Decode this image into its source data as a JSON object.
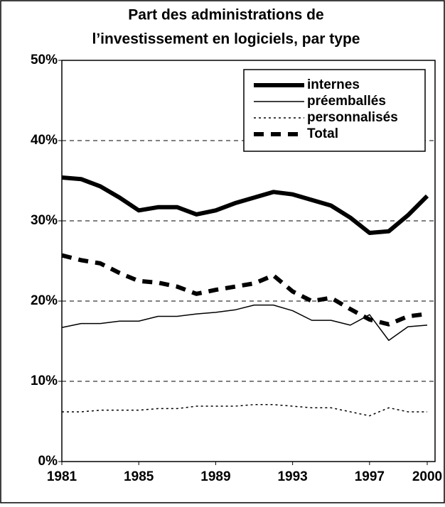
{
  "chart_data": {
    "type": "line",
    "title": [
      "Part des administrations de",
      "l’investissement en logiciels, par type"
    ],
    "x": [
      1981,
      1982,
      1983,
      1984,
      1985,
      1986,
      1987,
      1988,
      1989,
      1990,
      1991,
      1992,
      1993,
      1994,
      1995,
      1996,
      1997,
      1998,
      1999,
      2000
    ],
    "xlim": [
      1981,
      2000
    ],
    "xticks": [
      1981,
      1985,
      1989,
      1993,
      1997,
      2000
    ],
    "ylim": [
      0,
      50
    ],
    "yticks": [
      {
        "value": 0,
        "label": "0%"
      },
      {
        "value": 10,
        "label": "10%"
      },
      {
        "value": 20,
        "label": "20%"
      },
      {
        "value": 30,
        "label": "30%"
      },
      {
        "value": 40,
        "label": "40%"
      },
      {
        "value": 50,
        "label": "50%"
      }
    ],
    "grid": true,
    "legend": "top-right",
    "series": [
      {
        "name": "internes",
        "color": "#000000",
        "width": 6,
        "dash": "none",
        "values": [
          35.4,
          35.2,
          34.3,
          32.9,
          31.3,
          31.7,
          31.7,
          30.8,
          31.3,
          32.2,
          32.9,
          33.6,
          33.3,
          32.6,
          31.9,
          30.4,
          28.5,
          28.7,
          30.7,
          33.1
        ]
      },
      {
        "name": "préemballés",
        "color": "#000000",
        "width": 1.5,
        "dash": "none",
        "values": [
          16.7,
          17.2,
          17.2,
          17.5,
          17.5,
          18.1,
          18.1,
          18.4,
          18.6,
          18.9,
          19.5,
          19.5,
          18.8,
          17.6,
          17.6,
          17.0,
          18.3,
          15.1,
          16.8,
          17.0
        ]
      },
      {
        "name": "personnalisés",
        "color": "#000000",
        "width": 1.5,
        "dash": "3 4",
        "values": [
          6.2,
          6.2,
          6.4,
          6.4,
          6.4,
          6.6,
          6.6,
          6.9,
          6.9,
          6.9,
          7.1,
          7.1,
          6.9,
          6.7,
          6.7,
          6.2,
          5.7,
          6.7,
          6.2,
          6.2
        ]
      },
      {
        "name": "Total",
        "color": "#000000",
        "width": 6,
        "dash": "14 10",
        "values": [
          25.7,
          25.1,
          24.7,
          23.5,
          22.5,
          22.3,
          21.8,
          20.9,
          21.4,
          21.8,
          22.2,
          23.2,
          21.2,
          20.0,
          20.4,
          19.0,
          17.7,
          17.1,
          18.1,
          18.4
        ]
      }
    ]
  }
}
